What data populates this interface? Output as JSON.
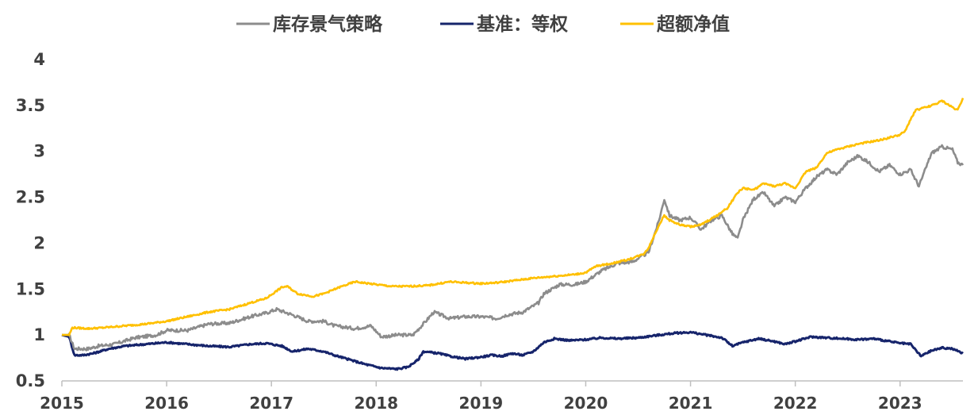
{
  "chart_data": {
    "type": "line",
    "title": "",
    "xlabel": "",
    "ylabel": "",
    "x_ticks": [
      "2015",
      "2016",
      "2017",
      "2018",
      "2019",
      "2020",
      "2021",
      "2022",
      "2023"
    ],
    "y_ticks": [
      "0.5",
      "1",
      "1.5",
      "2",
      "2.5",
      "3",
      "3.5",
      "4"
    ],
    "ylim": [
      0.5,
      4
    ],
    "xlim": [
      2015.0,
      2023.6
    ],
    "grid": false,
    "legend_position": "top",
    "series": [
      {
        "name": "库存景气策略",
        "color": "#8C8C8C",
        "points": [
          [
            2015.0,
            1.0
          ],
          [
            2015.07,
            1.0
          ],
          [
            2015.12,
            0.85
          ],
          [
            2015.25,
            0.85
          ],
          [
            2015.35,
            0.88
          ],
          [
            2015.5,
            0.9
          ],
          [
            2015.7,
            0.97
          ],
          [
            2015.9,
            1.0
          ],
          [
            2016.0,
            1.05
          ],
          [
            2016.2,
            1.05
          ],
          [
            2016.4,
            1.12
          ],
          [
            2016.6,
            1.13
          ],
          [
            2016.8,
            1.2
          ],
          [
            2016.95,
            1.24
          ],
          [
            2017.05,
            1.28
          ],
          [
            2017.2,
            1.22
          ],
          [
            2017.35,
            1.15
          ],
          [
            2017.5,
            1.15
          ],
          [
            2017.6,
            1.1
          ],
          [
            2017.8,
            1.07
          ],
          [
            2017.95,
            1.1
          ],
          [
            2018.05,
            0.98
          ],
          [
            2018.2,
            1.0
          ],
          [
            2018.35,
            1.0
          ],
          [
            2018.45,
            1.12
          ],
          [
            2018.55,
            1.25
          ],
          [
            2018.7,
            1.18
          ],
          [
            2018.85,
            1.2
          ],
          [
            2019.0,
            1.2
          ],
          [
            2019.15,
            1.18
          ],
          [
            2019.25,
            1.22
          ],
          [
            2019.4,
            1.25
          ],
          [
            2019.55,
            1.35
          ],
          [
            2019.6,
            1.45
          ],
          [
            2019.75,
            1.55
          ],
          [
            2019.9,
            1.55
          ],
          [
            2020.0,
            1.58
          ],
          [
            2020.15,
            1.7
          ],
          [
            2020.3,
            1.78
          ],
          [
            2020.45,
            1.8
          ],
          [
            2020.6,
            1.9
          ],
          [
            2020.7,
            2.25
          ],
          [
            2020.75,
            2.48
          ],
          [
            2020.8,
            2.3
          ],
          [
            2020.9,
            2.25
          ],
          [
            2021.0,
            2.28
          ],
          [
            2021.1,
            2.15
          ],
          [
            2021.2,
            2.25
          ],
          [
            2021.3,
            2.3
          ],
          [
            2021.4,
            2.1
          ],
          [
            2021.45,
            2.05
          ],
          [
            2021.5,
            2.25
          ],
          [
            2021.6,
            2.48
          ],
          [
            2021.7,
            2.55
          ],
          [
            2021.8,
            2.4
          ],
          [
            2021.9,
            2.5
          ],
          [
            2022.0,
            2.45
          ],
          [
            2022.1,
            2.6
          ],
          [
            2022.2,
            2.72
          ],
          [
            2022.3,
            2.8
          ],
          [
            2022.4,
            2.75
          ],
          [
            2022.5,
            2.88
          ],
          [
            2022.6,
            2.95
          ],
          [
            2022.7,
            2.88
          ],
          [
            2022.8,
            2.78
          ],
          [
            2022.9,
            2.85
          ],
          [
            2023.0,
            2.75
          ],
          [
            2023.1,
            2.8
          ],
          [
            2023.18,
            2.62
          ],
          [
            2023.3,
            2.98
          ],
          [
            2023.4,
            3.05
          ],
          [
            2023.5,
            3.02
          ],
          [
            2023.55,
            2.88
          ],
          [
            2023.6,
            2.85
          ]
        ]
      },
      {
        "name": "基准：等权",
        "color": "#16246B",
        "points": [
          [
            2015.0,
            1.0
          ],
          [
            2015.07,
            0.98
          ],
          [
            2015.12,
            0.78
          ],
          [
            2015.2,
            0.78
          ],
          [
            2015.3,
            0.8
          ],
          [
            2015.45,
            0.85
          ],
          [
            2015.6,
            0.88
          ],
          [
            2015.8,
            0.9
          ],
          [
            2016.0,
            0.92
          ],
          [
            2016.2,
            0.9
          ],
          [
            2016.4,
            0.88
          ],
          [
            2016.6,
            0.87
          ],
          [
            2016.8,
            0.9
          ],
          [
            2016.95,
            0.91
          ],
          [
            2017.1,
            0.88
          ],
          [
            2017.2,
            0.82
          ],
          [
            2017.35,
            0.85
          ],
          [
            2017.5,
            0.82
          ],
          [
            2017.6,
            0.78
          ],
          [
            2017.75,
            0.73
          ],
          [
            2017.9,
            0.68
          ],
          [
            2018.05,
            0.64
          ],
          [
            2018.2,
            0.63
          ],
          [
            2018.3,
            0.65
          ],
          [
            2018.4,
            0.73
          ],
          [
            2018.45,
            0.82
          ],
          [
            2018.6,
            0.8
          ],
          [
            2018.7,
            0.77
          ],
          [
            2018.85,
            0.74
          ],
          [
            2019.0,
            0.76
          ],
          [
            2019.1,
            0.78
          ],
          [
            2019.2,
            0.77
          ],
          [
            2019.3,
            0.8
          ],
          [
            2019.4,
            0.78
          ],
          [
            2019.5,
            0.82
          ],
          [
            2019.6,
            0.92
          ],
          [
            2019.7,
            0.96
          ],
          [
            2019.85,
            0.94
          ],
          [
            2020.0,
            0.95
          ],
          [
            2020.15,
            0.97
          ],
          [
            2020.3,
            0.96
          ],
          [
            2020.5,
            0.97
          ],
          [
            2020.7,
            1.0
          ],
          [
            2020.85,
            1.02
          ],
          [
            2021.0,
            1.03
          ],
          [
            2021.1,
            1.01
          ],
          [
            2021.3,
            0.97
          ],
          [
            2021.4,
            0.88
          ],
          [
            2021.5,
            0.92
          ],
          [
            2021.65,
            0.96
          ],
          [
            2021.8,
            0.93
          ],
          [
            2021.9,
            0.9
          ],
          [
            2022.0,
            0.93
          ],
          [
            2022.15,
            0.98
          ],
          [
            2022.3,
            0.97
          ],
          [
            2022.45,
            0.96
          ],
          [
            2022.6,
            0.95
          ],
          [
            2022.75,
            0.96
          ],
          [
            2022.9,
            0.93
          ],
          [
            2023.0,
            0.91
          ],
          [
            2023.1,
            0.9
          ],
          [
            2023.2,
            0.77
          ],
          [
            2023.3,
            0.83
          ],
          [
            2023.4,
            0.86
          ],
          [
            2023.5,
            0.85
          ],
          [
            2023.6,
            0.8
          ]
        ]
      },
      {
        "name": "超额净值",
        "color": "#FFC000",
        "points": [
          [
            2015.0,
            1.0
          ],
          [
            2015.07,
            1.0
          ],
          [
            2015.1,
            1.08
          ],
          [
            2015.25,
            1.07
          ],
          [
            2015.4,
            1.08
          ],
          [
            2015.6,
            1.1
          ],
          [
            2015.8,
            1.12
          ],
          [
            2016.0,
            1.15
          ],
          [
            2016.2,
            1.2
          ],
          [
            2016.4,
            1.25
          ],
          [
            2016.6,
            1.28
          ],
          [
            2016.8,
            1.35
          ],
          [
            2016.95,
            1.4
          ],
          [
            2017.1,
            1.52
          ],
          [
            2017.15,
            1.53
          ],
          [
            2017.25,
            1.45
          ],
          [
            2017.4,
            1.42
          ],
          [
            2017.5,
            1.45
          ],
          [
            2017.65,
            1.52
          ],
          [
            2017.8,
            1.58
          ],
          [
            2018.0,
            1.55
          ],
          [
            2018.15,
            1.53
          ],
          [
            2018.3,
            1.53
          ],
          [
            2018.5,
            1.54
          ],
          [
            2018.7,
            1.58
          ],
          [
            2018.85,
            1.57
          ],
          [
            2019.0,
            1.56
          ],
          [
            2019.15,
            1.57
          ],
          [
            2019.3,
            1.59
          ],
          [
            2019.5,
            1.62
          ],
          [
            2019.7,
            1.64
          ],
          [
            2019.9,
            1.66
          ],
          [
            2020.0,
            1.68
          ],
          [
            2020.1,
            1.75
          ],
          [
            2020.25,
            1.78
          ],
          [
            2020.4,
            1.82
          ],
          [
            2020.55,
            1.88
          ],
          [
            2020.6,
            1.95
          ],
          [
            2020.7,
            2.2
          ],
          [
            2020.75,
            2.3
          ],
          [
            2020.8,
            2.25
          ],
          [
            2020.9,
            2.2
          ],
          [
            2021.0,
            2.18
          ],
          [
            2021.1,
            2.2
          ],
          [
            2021.25,
            2.3
          ],
          [
            2021.35,
            2.38
          ],
          [
            2021.45,
            2.55
          ],
          [
            2021.5,
            2.6
          ],
          [
            2021.6,
            2.58
          ],
          [
            2021.7,
            2.65
          ],
          [
            2021.8,
            2.62
          ],
          [
            2021.9,
            2.65
          ],
          [
            2022.0,
            2.6
          ],
          [
            2022.1,
            2.78
          ],
          [
            2022.2,
            2.82
          ],
          [
            2022.3,
            2.98
          ],
          [
            2022.4,
            3.02
          ],
          [
            2022.5,
            3.05
          ],
          [
            2022.6,
            3.08
          ],
          [
            2022.7,
            3.1
          ],
          [
            2022.8,
            3.12
          ],
          [
            2022.9,
            3.15
          ],
          [
            2023.0,
            3.18
          ],
          [
            2023.05,
            3.22
          ],
          [
            2023.1,
            3.35
          ],
          [
            2023.15,
            3.45
          ],
          [
            2023.25,
            3.48
          ],
          [
            2023.35,
            3.52
          ],
          [
            2023.4,
            3.55
          ],
          [
            2023.5,
            3.48
          ],
          [
            2023.55,
            3.45
          ],
          [
            2023.6,
            3.58
          ]
        ]
      }
    ]
  }
}
